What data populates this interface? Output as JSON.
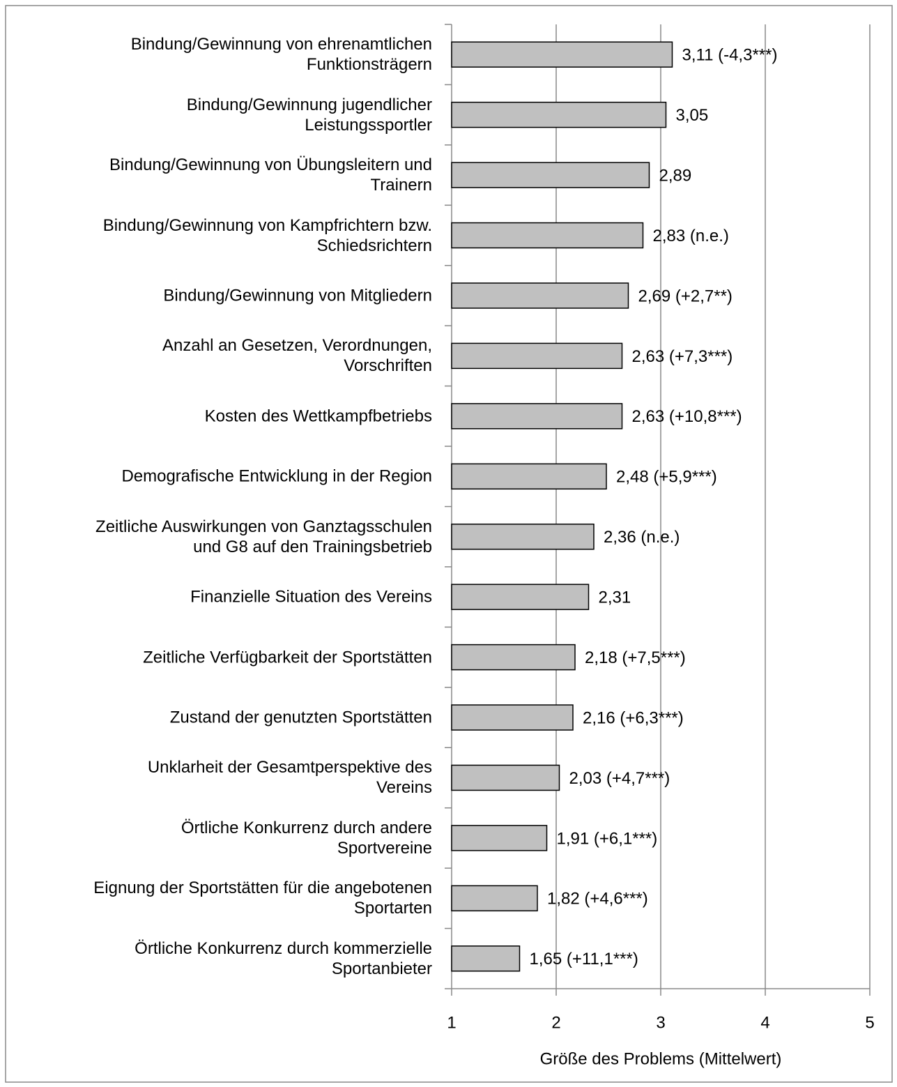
{
  "chart_data": {
    "type": "bar",
    "orientation": "horizontal",
    "x_label": "Größe des Problems (Mittelwert)",
    "categories": [
      "Bindung/Gewinnung von ehrenamtlichen\nFunktionsträgern",
      "Bindung/Gewinnung jugendlicher\nLeistungssportler",
      "Bindung/Gewinnung von Übungsleitern und\nTrainern",
      "Bindung/Gewinnung von Kampfrichtern bzw.\nSchiedsrichtern",
      "Bindung/Gewinnung von Mitgliedern",
      "Anzahl an Gesetzen, Verordnungen,\nVorschriften",
      "Kosten des Wettkampfbetriebs",
      "Demografische Entwicklung in der Region",
      "Zeitliche Auswirkungen von Ganztagsschulen\nund G8 auf den Trainingsbetrieb",
      "Finanzielle Situation des Vereins",
      "Zeitliche Verfügbarkeit der Sportstätten",
      "Zustand der genutzten Sportstätten",
      "Unklarheit der Gesamtperspektive des\nVereins",
      "Örtliche Konkurrenz durch andere\nSportvereine",
      "Eignung der Sportstätten für die angebotenen\nSportarten",
      "Örtliche Konkurrenz durch kommerzielle\nSportanbieter"
    ],
    "values": [
      3.11,
      3.05,
      2.89,
      2.83,
      2.69,
      2.63,
      2.63,
      2.48,
      2.36,
      2.31,
      2.18,
      2.16,
      2.03,
      1.91,
      1.82,
      1.65
    ],
    "value_labels": [
      "3,11 (-4,3***)",
      "3,05",
      "2,89",
      "2,83 (n.e.)",
      "2,69 (+2,7**)",
      "2,63 (+7,3***)",
      "2,63 (+10,8***)",
      "2,48 (+5,9***)",
      "2,36 (n.e.)",
      "2,31",
      "2,18 (+7,5***)",
      "2,16 (+6,3***)",
      "2,03 (+4,7***)",
      "1,91 (+6,1***)",
      "1,82 (+4,6***)",
      "1,65 (+11,1***)"
    ],
    "color": "#c0c0c0",
    "xlim": [
      1,
      5
    ],
    "xticks": [
      1,
      2,
      3,
      4,
      5
    ],
    "grid": true
  }
}
